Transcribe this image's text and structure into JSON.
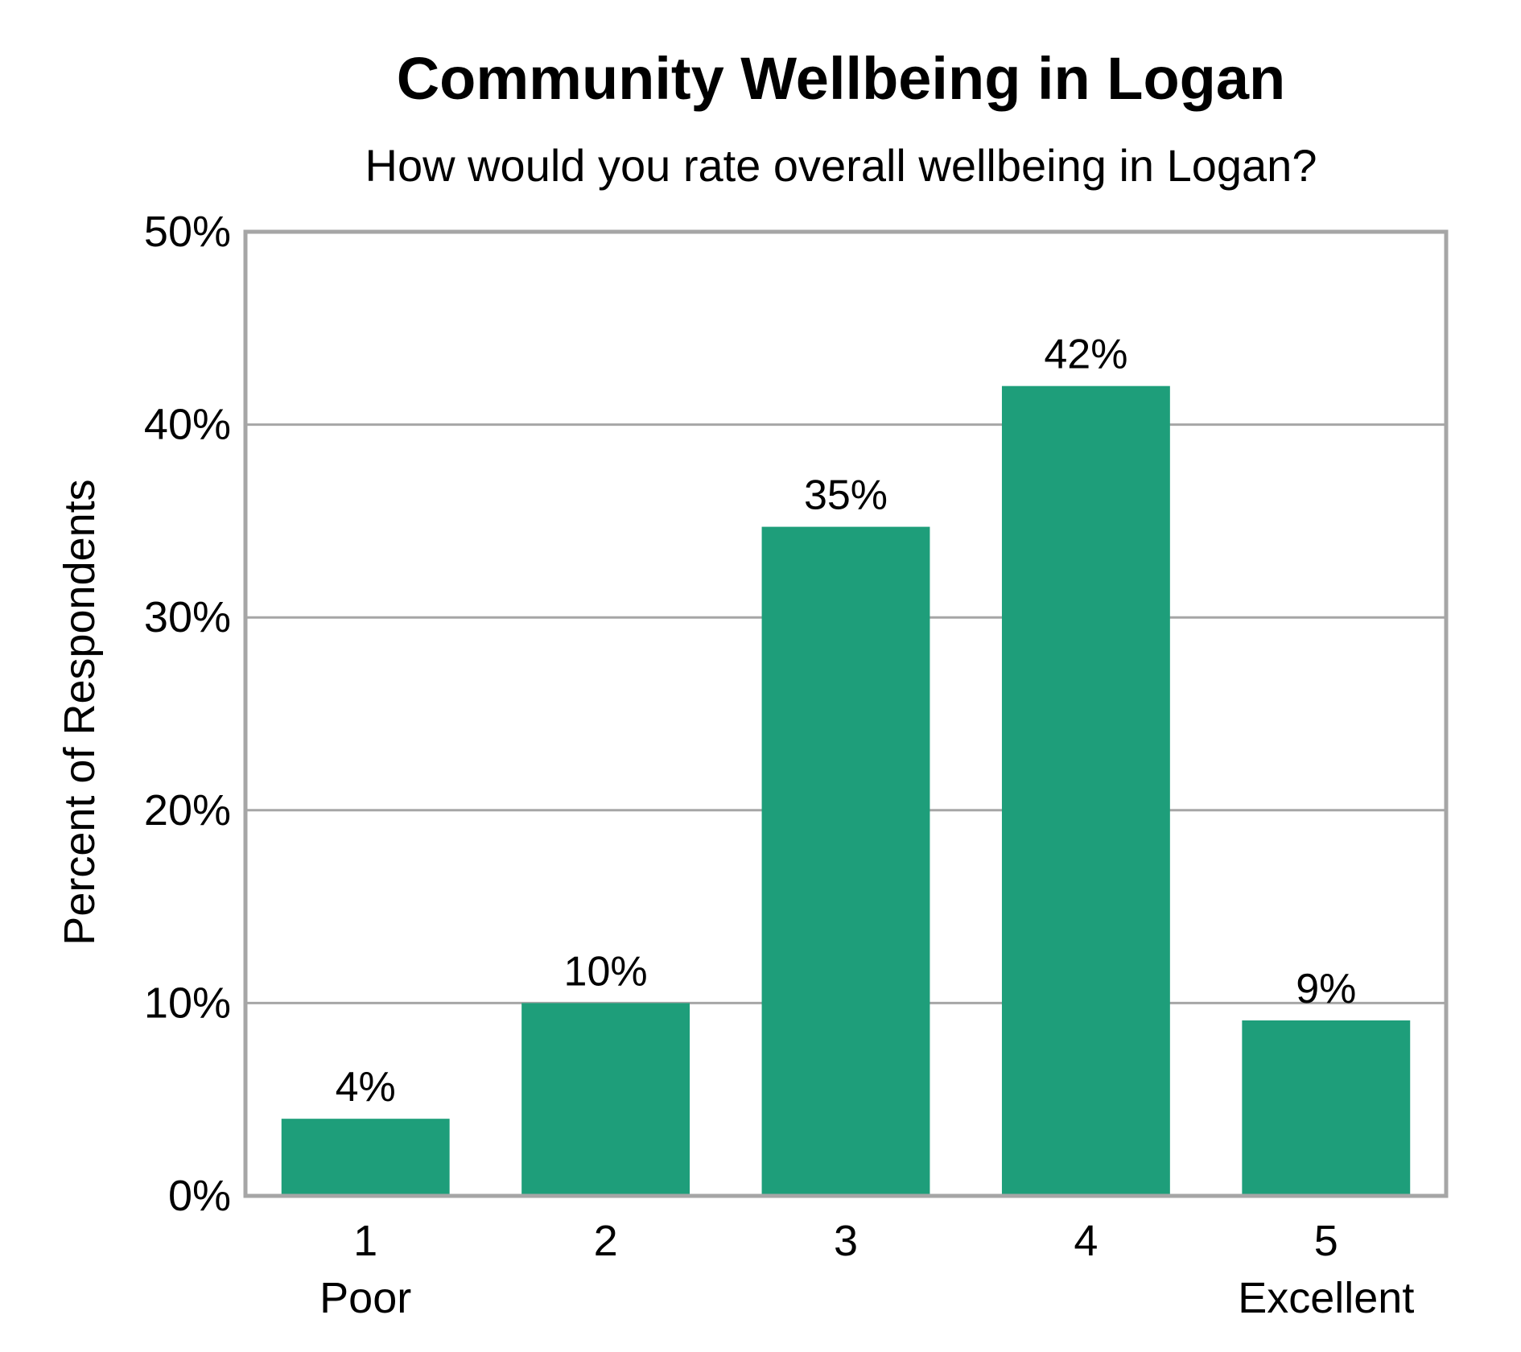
{
  "chart_data": {
    "type": "bar",
    "title": "Community Wellbeing in Logan",
    "subtitle": "How would you rate overall wellbeing in Logan?",
    "xlabel": "",
    "ylabel": "Percent of Respondents",
    "categories": [
      "1",
      "2",
      "3",
      "4",
      "5"
    ],
    "category_sublabels": [
      "Poor",
      "",
      "",
      "",
      "Excellent"
    ],
    "values": [
      4,
      10,
      34.7,
      42,
      9.1
    ],
    "data_labels": [
      "4%",
      "10%",
      "35%",
      "42%",
      "9%"
    ],
    "ylim": [
      0,
      50
    ],
    "yticks": [
      0,
      10,
      20,
      30,
      40,
      50
    ],
    "ytick_labels": [
      "0%",
      "10%",
      "20%",
      "30%",
      "40%",
      "50%"
    ],
    "grid": true,
    "legend": "none",
    "colors": {
      "bar": "#1e9e7a",
      "grid": "#a6a6a6",
      "frame": "#a6a6a6"
    }
  }
}
